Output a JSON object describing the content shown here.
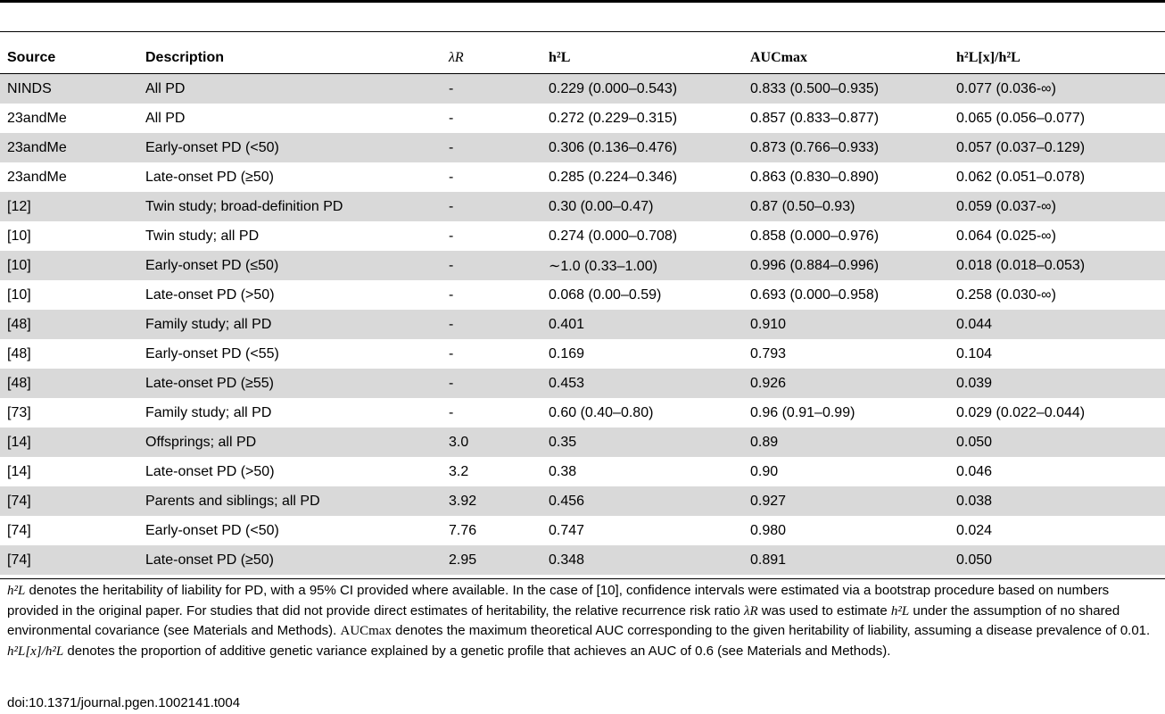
{
  "table": {
    "headers": {
      "source": "Source",
      "description": "Description",
      "lambda_r": "λR",
      "h2l": "h²L",
      "aucmax": "AUCmax",
      "ratio": "h²L[x]/h²L"
    },
    "rows": [
      {
        "source": "NINDS",
        "description": "All PD",
        "lambda": "-",
        "h2": "0.229 (0.000–0.543)",
        "auc": "0.833 (0.500–0.935)",
        "ratio": "0.077 (0.036-∞)"
      },
      {
        "source": "23andMe",
        "description": "All PD",
        "lambda": "-",
        "h2": "0.272 (0.229–0.315)",
        "auc": "0.857 (0.833–0.877)",
        "ratio": "0.065 (0.056–0.077)"
      },
      {
        "source": "23andMe",
        "description": "Early-onset PD (<50)",
        "lambda": "-",
        "h2": "0.306 (0.136–0.476)",
        "auc": "0.873 (0.766–0.933)",
        "ratio": "0.057 (0.037–0.129)"
      },
      {
        "source": "23andMe",
        "description": "Late-onset PD (≥50)",
        "lambda": "-",
        "h2": "0.285 (0.224–0.346)",
        "auc": "0.863 (0.830–0.890)",
        "ratio": "0.062 (0.051–0.078)"
      },
      {
        "source": "[12]",
        "description": "Twin study; broad-definition PD",
        "lambda": "-",
        "h2": "0.30 (0.00–0.47)",
        "auc": "0.87 (0.50–0.93)",
        "ratio": "0.059 (0.037-∞)"
      },
      {
        "source": "[10]",
        "description": "Twin study; all PD",
        "lambda": "-",
        "h2": "0.274 (0.000–0.708)",
        "auc": "0.858 (0.000–0.976)",
        "ratio": "0.064 (0.025-∞)"
      },
      {
        "source": "[10]",
        "description": "Early-onset PD (≤50)",
        "lambda": "-",
        "h2": "∼1.0 (0.33–1.00)",
        "auc": "0.996 (0.884–0.996)",
        "ratio": "0.018 (0.018–0.053)"
      },
      {
        "source": "[10]",
        "description": "Late-onset PD (>50)",
        "lambda": "-",
        "h2": "0.068 (0.00–0.59)",
        "auc": "0.693 (0.000–0.958)",
        "ratio": "0.258 (0.030-∞)"
      },
      {
        "source": "[48]",
        "description": "Family study; all PD",
        "lambda": "-",
        "h2": "0.401",
        "auc": "0.910",
        "ratio": "0.044"
      },
      {
        "source": "[48]",
        "description": "Early-onset PD (<55)",
        "lambda": "-",
        "h2": "0.169",
        "auc": "0.793",
        "ratio": "0.104"
      },
      {
        "source": "[48]",
        "description": "Late-onset PD (≥55)",
        "lambda": "-",
        "h2": "0.453",
        "auc": "0.926",
        "ratio": "0.039"
      },
      {
        "source": "[73]",
        "description": "Family study; all PD",
        "lambda": "-",
        "h2": "0.60 (0.40–0.80)",
        "auc": "0.96 (0.91–0.99)",
        "ratio": "0.029 (0.022–0.044)"
      },
      {
        "source": "[14]",
        "description": "Offsprings; all PD",
        "lambda": "3.0",
        "h2": "0.35",
        "auc": "0.89",
        "ratio": "0.050"
      },
      {
        "source": "[14]",
        "description": "Late-onset PD (>50)",
        "lambda": "3.2",
        "h2": "0.38",
        "auc": "0.90",
        "ratio": "0.046"
      },
      {
        "source": "[74]",
        "description": "Parents and siblings; all PD",
        "lambda": "3.92",
        "h2": "0.456",
        "auc": "0.927",
        "ratio": "0.038"
      },
      {
        "source": "[74]",
        "description": "Early-onset PD (<50)",
        "lambda": "7.76",
        "h2": "0.747",
        "auc": "0.980",
        "ratio": "0.024"
      },
      {
        "source": "[74]",
        "description": "Late-onset PD (≥50)",
        "lambda": "2.95",
        "h2": "0.348",
        "auc": "0.891",
        "ratio": "0.050"
      }
    ]
  },
  "footnote": {
    "s1_sym": "h²L",
    "s1": " denotes the heritability of liability for PD, with a 95% CI provided where available. In the case of [10], confidence intervals were estimated via a bootstrap procedure based on numbers provided in the original paper. For studies that did not provide direct estimates of heritability, the relative recurrence risk ratio ",
    "s2_sym": "λR",
    "s2": " was used to estimate ",
    "s3_sym": "h²L",
    "s3": " under the assumption of no shared environmental covariance (see Materials and Methods). ",
    "s4_sym": "AUCmax",
    "s4": " denotes the maximum theoretical AUC corresponding to the given heritability of liability, assuming a disease prevalence of 0.01. ",
    "s5_sym": "h²L[x]/h²L",
    "s5": " denotes the proportion of additive genetic variance explained by a genetic profile that achieves an AUC of 0.6 (see Materials and Methods)."
  },
  "doi": "doi:10.1371/journal.pgen.1002141.t004"
}
